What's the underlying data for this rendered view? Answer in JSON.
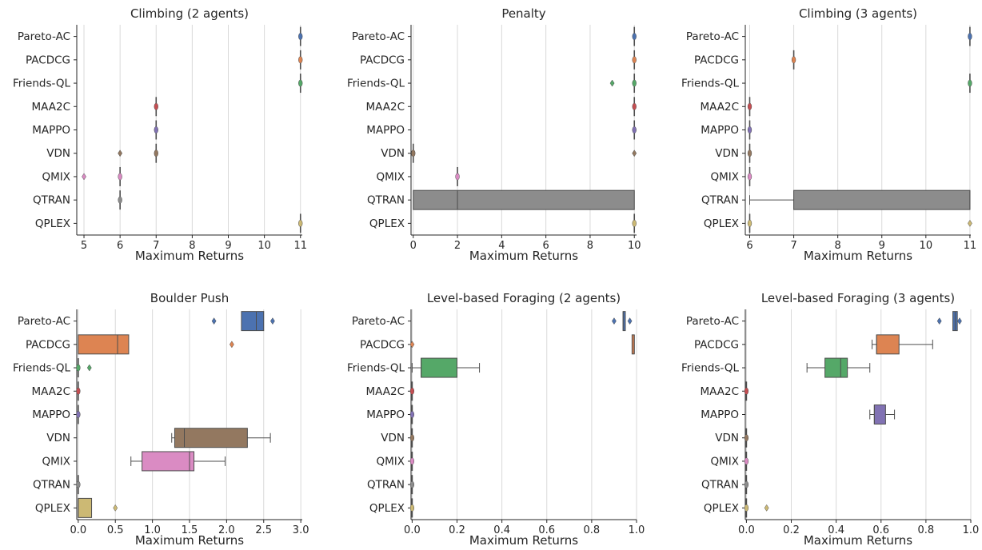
{
  "colors": {
    "Pareto-AC": "#4c72b0",
    "PACDCG": "#dd8452",
    "Friends-QL": "#55a868",
    "MAA2C": "#c44e52",
    "MAPPO": "#8172b3",
    "VDN": "#937860",
    "QMIX": "#da8bc3",
    "QTRAN": "#8c8c8c",
    "QPLEX": "#ccb974"
  },
  "chart_data": [
    {
      "type": "box",
      "title": "Climbing (2 agents)",
      "xlabel": "Maximum Returns",
      "xlim": [
        4.8,
        11.05
      ],
      "xticks": [
        5,
        6,
        7,
        8,
        9,
        10,
        11
      ],
      "xtick_labels": [
        "5",
        "6",
        "7",
        "8",
        "9",
        "10",
        "11"
      ],
      "categories": [
        "Pareto-AC",
        "PACDCG",
        "Friends-QL",
        "MAA2C",
        "MAPPO",
        "VDN",
        "QMIX",
        "QTRAN",
        "QPLEX"
      ],
      "boxes": [
        {
          "q1": 11,
          "median": 11,
          "q3": 11,
          "wlo": 11,
          "whi": 11,
          "fliers": []
        },
        {
          "q1": 11,
          "median": 11,
          "q3": 11,
          "wlo": 11,
          "whi": 11,
          "fliers": []
        },
        {
          "q1": 11,
          "median": 11,
          "q3": 11,
          "wlo": 11,
          "whi": 11,
          "fliers": []
        },
        {
          "q1": 7,
          "median": 7,
          "q3": 7,
          "wlo": 7,
          "whi": 7,
          "fliers": []
        },
        {
          "q1": 7,
          "median": 7,
          "q3": 7,
          "wlo": 7,
          "whi": 7,
          "fliers": []
        },
        {
          "q1": 7,
          "median": 7,
          "q3": 7,
          "wlo": 7,
          "whi": 7,
          "fliers": [
            6
          ]
        },
        {
          "q1": 6,
          "median": 6,
          "q3": 6,
          "wlo": 6,
          "whi": 6,
          "fliers": [
            5
          ]
        },
        {
          "q1": 6,
          "median": 6,
          "q3": 6,
          "wlo": 6,
          "whi": 6,
          "fliers": []
        },
        {
          "q1": 11,
          "median": 11,
          "q3": 11,
          "wlo": 11,
          "whi": 11,
          "fliers": []
        }
      ]
    },
    {
      "type": "box",
      "title": "Penalty",
      "xlabel": "Maximum Returns",
      "xlim": [
        -0.1,
        10.1
      ],
      "xticks": [
        0,
        2,
        4,
        6,
        8,
        10
      ],
      "xtick_labels": [
        "0",
        "2",
        "4",
        "6",
        "8",
        "10"
      ],
      "categories": [
        "Pareto-AC",
        "PACDCG",
        "Friends-QL",
        "MAA2C",
        "MAPPO",
        "VDN",
        "QMIX",
        "QTRAN",
        "QPLEX"
      ],
      "boxes": [
        {
          "q1": 10,
          "median": 10,
          "q3": 10,
          "wlo": 10,
          "whi": 10,
          "fliers": []
        },
        {
          "q1": 10,
          "median": 10,
          "q3": 10,
          "wlo": 10,
          "whi": 10,
          "fliers": []
        },
        {
          "q1": 10,
          "median": 10,
          "q3": 10,
          "wlo": 10,
          "whi": 10,
          "fliers": [
            9
          ]
        },
        {
          "q1": 10,
          "median": 10,
          "q3": 10,
          "wlo": 10,
          "whi": 10,
          "fliers": []
        },
        {
          "q1": 10,
          "median": 10,
          "q3": 10,
          "wlo": 10,
          "whi": 10,
          "fliers": []
        },
        {
          "q1": 0,
          "median": 0,
          "q3": 0,
          "wlo": 0,
          "whi": 0,
          "fliers": [
            10
          ]
        },
        {
          "q1": 2,
          "median": 2,
          "q3": 2,
          "wlo": 2,
          "whi": 2,
          "fliers": []
        },
        {
          "q1": 0,
          "median": 2,
          "q3": 10,
          "wlo": 0,
          "whi": 10,
          "fliers": []
        },
        {
          "q1": 10,
          "median": 10,
          "q3": 10,
          "wlo": 10,
          "whi": 10,
          "fliers": []
        }
      ]
    },
    {
      "type": "box",
      "title": "Climbing (3 agents)",
      "xlabel": "Maximum Returns",
      "xlim": [
        5.9,
        11.02
      ],
      "xticks": [
        6,
        7,
        8,
        9,
        10,
        11
      ],
      "xtick_labels": [
        "6",
        "7",
        "8",
        "9",
        "10",
        "11"
      ],
      "categories": [
        "Pareto-AC",
        "PACDCG",
        "Friends-QL",
        "MAA2C",
        "MAPPO",
        "VDN",
        "QMIX",
        "QTRAN",
        "QPLEX"
      ],
      "boxes": [
        {
          "q1": 11,
          "median": 11,
          "q3": 11,
          "wlo": 11,
          "whi": 11,
          "fliers": []
        },
        {
          "q1": 7,
          "median": 7,
          "q3": 7,
          "wlo": 7,
          "whi": 7,
          "fliers": []
        },
        {
          "q1": 11,
          "median": 11,
          "q3": 11,
          "wlo": 11,
          "whi": 11,
          "fliers": []
        },
        {
          "q1": 6,
          "median": 6,
          "q3": 6,
          "wlo": 6,
          "whi": 6,
          "fliers": []
        },
        {
          "q1": 6,
          "median": 6,
          "q3": 6,
          "wlo": 6,
          "whi": 6,
          "fliers": []
        },
        {
          "q1": 6,
          "median": 6,
          "q3": 6,
          "wlo": 6,
          "whi": 6,
          "fliers": []
        },
        {
          "q1": 6,
          "median": 6,
          "q3": 6,
          "wlo": 6,
          "whi": 6,
          "fliers": []
        },
        {
          "q1": 7,
          "median": 11,
          "q3": 11,
          "wlo": 6,
          "whi": 11,
          "fliers": []
        },
        {
          "q1": 6,
          "median": 6,
          "q3": 6,
          "wlo": 6,
          "whi": 6,
          "fliers": [
            11
          ]
        }
      ]
    },
    {
      "type": "box",
      "title": "Boulder Push",
      "xlabel": "Maximum Returns",
      "xlim": [
        -0.02,
        3.02
      ],
      "xticks": [
        0,
        0.5,
        1,
        1.5,
        2,
        2.5,
        3
      ],
      "xtick_labels": [
        "0.0",
        "0.5",
        "1.0",
        "1.5",
        "2.0",
        "2.5",
        "3.0"
      ],
      "categories": [
        "Pareto-AC",
        "PACDCG",
        "Friends-QL",
        "MAA2C",
        "MAPPO",
        "VDN",
        "QMIX",
        "QTRAN",
        "QPLEX"
      ],
      "boxes": [
        {
          "q1": 2.2,
          "median": 2.4,
          "q3": 2.5,
          "wlo": 2.2,
          "whi": 2.5,
          "fliers": [
            1.83,
            2.62
          ]
        },
        {
          "q1": 0,
          "median": 0.53,
          "q3": 0.68,
          "wlo": 0,
          "whi": 0.68,
          "fliers": [
            2.07
          ]
        },
        {
          "q1": 0,
          "median": 0,
          "q3": 0,
          "wlo": 0,
          "whi": 0,
          "fliers": [
            0.15
          ]
        },
        {
          "q1": 0,
          "median": 0,
          "q3": 0,
          "wlo": 0,
          "whi": 0,
          "fliers": []
        },
        {
          "q1": 0,
          "median": 0,
          "q3": 0,
          "wlo": 0,
          "whi": 0,
          "fliers": []
        },
        {
          "q1": 1.3,
          "median": 1.43,
          "q3": 2.28,
          "wlo": 1.26,
          "whi": 2.59,
          "fliers": []
        },
        {
          "q1": 0.86,
          "median": 1.5,
          "q3": 1.56,
          "wlo": 0.71,
          "whi": 1.98,
          "fliers": []
        },
        {
          "q1": 0,
          "median": 0,
          "q3": 0,
          "wlo": 0,
          "whi": 0,
          "fliers": []
        },
        {
          "q1": 0,
          "median": 0,
          "q3": 0.18,
          "wlo": 0,
          "whi": 0.18,
          "fliers": [
            0.5
          ]
        }
      ]
    },
    {
      "type": "box",
      "title": "Level-based Foraging (2 agents)",
      "xlabel": "Maximum Returns",
      "xlim": [
        -0.005,
        1.0
      ],
      "xticks": [
        0,
        0.2,
        0.4,
        0.6,
        0.8,
        1.0
      ],
      "xtick_labels": [
        "0.0",
        "0.2",
        "0.4",
        "0.6",
        "0.8",
        "1.0"
      ],
      "categories": [
        "Pareto-AC",
        "PACDCG",
        "Friends-QL",
        "MAA2C",
        "MAPPO",
        "VDN",
        "QMIX",
        "QTRAN",
        "QPLEX"
      ],
      "boxes": [
        {
          "q1": 0.94,
          "median": 0.94,
          "q3": 0.95,
          "wlo": 0.94,
          "whi": 0.95,
          "fliers": [
            0.9,
            0.97
          ]
        },
        {
          "q1": 0.98,
          "median": 0.99,
          "q3": 0.99,
          "wlo": 0.98,
          "whi": 0.99,
          "fliers": [
            0
          ]
        },
        {
          "q1": 0.04,
          "median": 0.04,
          "q3": 0.2,
          "wlo": 0,
          "whi": 0.3,
          "fliers": []
        },
        {
          "q1": 0,
          "median": 0,
          "q3": 0,
          "wlo": 0,
          "whi": 0,
          "fliers": []
        },
        {
          "q1": 0,
          "median": 0,
          "q3": 0,
          "wlo": 0,
          "whi": 0,
          "fliers": []
        },
        {
          "q1": 0,
          "median": 0,
          "q3": 0,
          "wlo": 0,
          "whi": 0,
          "fliers": []
        },
        {
          "q1": 0,
          "median": 0,
          "q3": 0,
          "wlo": 0,
          "whi": 0,
          "fliers": []
        },
        {
          "q1": 0,
          "median": 0,
          "q3": 0,
          "wlo": 0,
          "whi": 0,
          "fliers": []
        },
        {
          "q1": 0,
          "median": 0,
          "q3": 0,
          "wlo": 0,
          "whi": 0,
          "fliers": []
        }
      ]
    },
    {
      "type": "box",
      "title": "Level-based Foraging (3 agents)",
      "xlabel": "Maximum Returns",
      "xlim": [
        -0.005,
        1.0
      ],
      "xticks": [
        0,
        0.2,
        0.4,
        0.6,
        0.8,
        1.0
      ],
      "xtick_labels": [
        "0.0",
        "0.2",
        "0.4",
        "0.6",
        "0.8",
        "1.0"
      ],
      "categories": [
        "Pareto-AC",
        "PACDCG",
        "Friends-QL",
        "MAA2C",
        "MAPPO",
        "VDN",
        "QMIX",
        "QTRAN",
        "QPLEX"
      ],
      "boxes": [
        {
          "q1": 0.92,
          "median": 0.93,
          "q3": 0.94,
          "wlo": 0.92,
          "whi": 0.94,
          "fliers": [
            0.86,
            0.95
          ]
        },
        {
          "q1": 0.58,
          "median": 0.58,
          "q3": 0.68,
          "wlo": 0.56,
          "whi": 0.83,
          "fliers": []
        },
        {
          "q1": 0.35,
          "median": 0.42,
          "q3": 0.45,
          "wlo": 0.27,
          "whi": 0.55,
          "fliers": []
        },
        {
          "q1": 0,
          "median": 0,
          "q3": 0,
          "wlo": 0,
          "whi": 0,
          "fliers": []
        },
        {
          "q1": 0.57,
          "median": 0.57,
          "q3": 0.62,
          "wlo": 0.55,
          "whi": 0.66,
          "fliers": []
        },
        {
          "q1": 0,
          "median": 0,
          "q3": 0,
          "wlo": 0,
          "whi": 0,
          "fliers": []
        },
        {
          "q1": 0,
          "median": 0,
          "q3": 0,
          "wlo": 0,
          "whi": 0,
          "fliers": []
        },
        {
          "q1": 0,
          "median": 0,
          "q3": 0,
          "wlo": 0,
          "whi": 0,
          "fliers": []
        },
        {
          "q1": 0,
          "median": 0,
          "q3": 0,
          "wlo": 0,
          "whi": 0,
          "fliers": [
            0.09
          ]
        }
      ]
    }
  ]
}
